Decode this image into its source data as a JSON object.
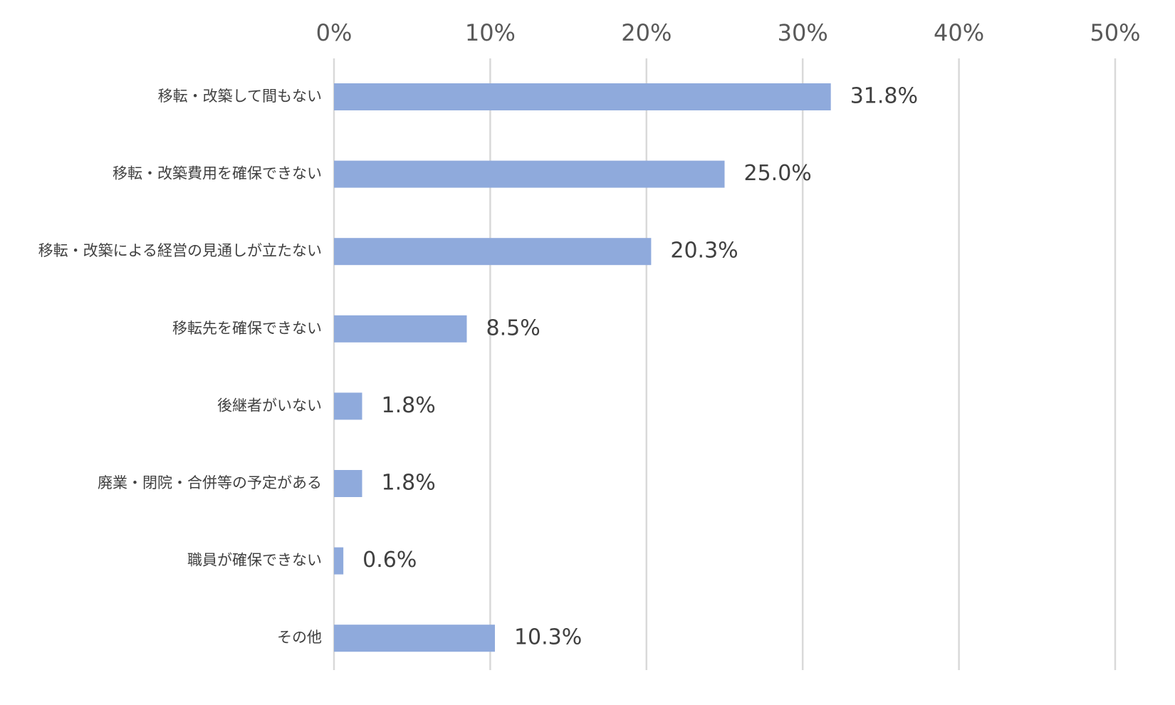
{
  "chart_data": {
    "type": "bar",
    "orientation": "horizontal",
    "categories": [
      "移転・改築して間もない",
      "移転・改築費用を確保できない",
      "移転・改築による経営の見通しが立たない",
      "移転先を確保できない",
      "後継者がいない",
      "廃業・閉院・合併等の予定がある",
      "職員が確保できない",
      "その他"
    ],
    "values": [
      31.8,
      25.0,
      20.3,
      8.5,
      1.8,
      1.8,
      0.6,
      10.3
    ],
    "value_labels": [
      "31.8%",
      "25.0%",
      "20.3%",
      "8.5%",
      "1.8%",
      "1.8%",
      "0.6%",
      "10.3%"
    ],
    "color": "#8faadc",
    "xlim": [
      0,
      50
    ],
    "xticks": [
      {
        "value": 0,
        "label": "0%"
      },
      {
        "value": 10,
        "label": "10%"
      },
      {
        "value": 20,
        "label": "20%"
      },
      {
        "value": 30,
        "label": "30%"
      },
      {
        "value": 40,
        "label": "40%"
      },
      {
        "value": 50,
        "label": "50%"
      }
    ],
    "grid": true
  }
}
